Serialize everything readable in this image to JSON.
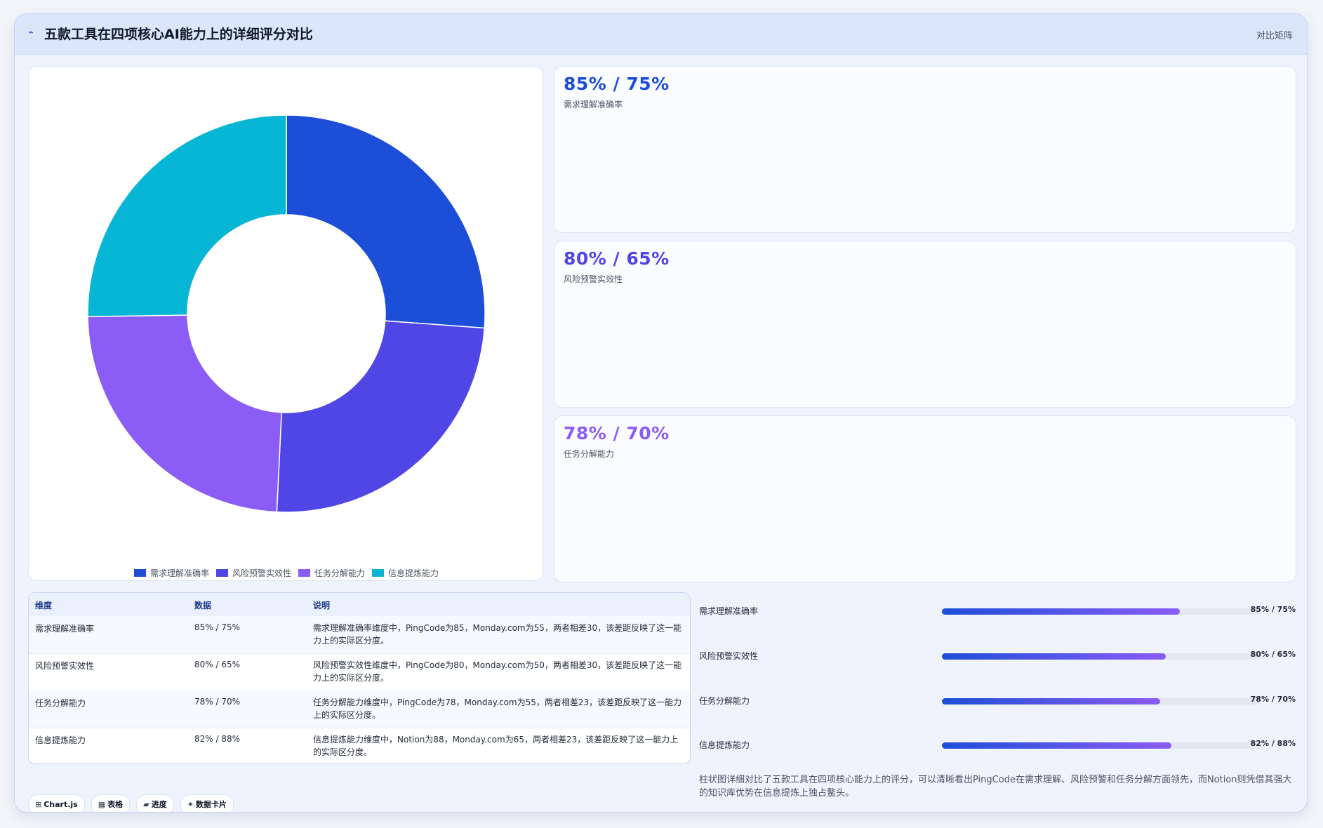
{
  "header": {
    "icon": "chart-icon",
    "title": "五款工具在四项核心AI能力上的详细评分对比",
    "subtitle": "对比矩阵"
  },
  "chart_data": {
    "type": "pie",
    "variant": "doughnut",
    "categories": [
      "需求理解准确率",
      "风险预警实效性",
      "任务分解能力",
      "信息提炼能力"
    ],
    "values": [
      85,
      80,
      78,
      82
    ],
    "colors": [
      "#1d4ed8",
      "#4f46e5",
      "#8b5cf6",
      "#06b6d4"
    ],
    "legend_position": "bottom"
  },
  "stats": [
    {
      "value": "85% / 75%",
      "label": "需求理解准确率",
      "color": "#1d4ed8"
    },
    {
      "value": "80% / 65%",
      "label": "风险预警实效性",
      "color": "#4f46e5"
    },
    {
      "value": "78% / 70%",
      "label": "任务分解能力",
      "color": "#8b5cf6"
    }
  ],
  "table": {
    "headers": [
      "维度",
      "数据",
      "说明"
    ],
    "rows": [
      [
        "需求理解准确率",
        "85% / 75%",
        "需求理解准确率维度中，PingCode为85，Monday.com为55，两者相差30，该差距反映了这一能力上的实际区分度。"
      ],
      [
        "风险预警实效性",
        "80% / 65%",
        "风险预警实效性维度中，PingCode为80，Monday.com为50，两者相差30，该差距反映了这一能力上的实际区分度。"
      ],
      [
        "任务分解能力",
        "78% / 70%",
        "任务分解能力维度中，PingCode为78，Monday.com为55，两者相差23，该差距反映了这一能力上的实际区分度。"
      ],
      [
        "信息提炼能力",
        "82% / 88%",
        "信息提炼能力维度中，Notion为88，Monday.com为65，两者相差23，该差距反映了这一能力上的实际区分度。"
      ]
    ]
  },
  "progress": [
    {
      "label": "需求理解准确率",
      "value": "85% / 75%",
      "fill": 0.745
    },
    {
      "label": "风险预警实效性",
      "value": "80% / 65%",
      "fill": 0.7
    },
    {
      "label": "任务分解能力",
      "value": "78% / 70%",
      "fill": 0.683
    },
    {
      "label": "信息提炼能力",
      "value": "82% / 88%",
      "fill": 0.718
    }
  ],
  "note": "柱状图详细对比了五款工具在四项核心能力上的评分，可以清晰看出PingCode在需求理解、风险预警和任务分解方面领先，而Notion则凭借其强大的知识库优势在信息提炼上独占鳌头。",
  "tags": [
    {
      "icon": "⊞",
      "icon_name": "chart-icon",
      "label": "Chart.js"
    },
    {
      "icon": "▦",
      "icon_name": "table-icon",
      "label": "表格"
    },
    {
      "icon": "▰",
      "icon_name": "progress-icon",
      "label": "进度"
    },
    {
      "icon": "✦",
      "icon_name": "card-icon",
      "label": "数据卡片"
    }
  ]
}
